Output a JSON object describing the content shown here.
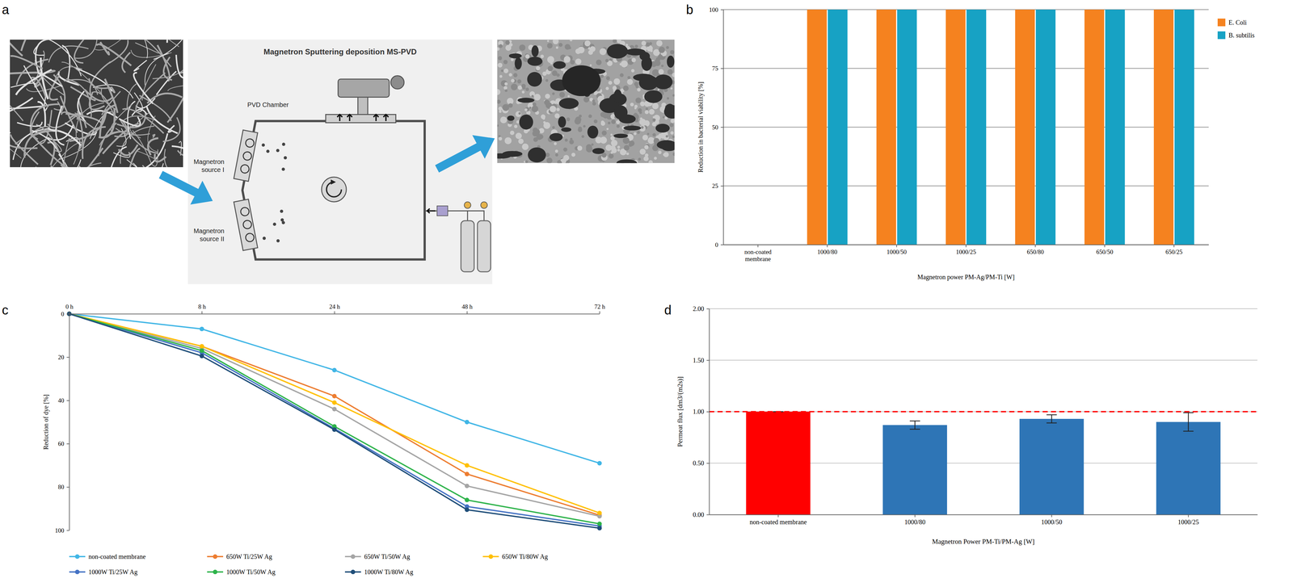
{
  "chart_data": [
    {
      "type": "diagram",
      "panel": "a",
      "title": "Magnetron Sputtering deposition MS-PVD",
      "labels": [
        "PVD Chamber",
        "Magnetron source I",
        "Magnetron source II"
      ]
    },
    {
      "type": "bar",
      "panel": "b",
      "categories": [
        "non-coated membrane",
        "1000/80",
        "1000/50",
        "1000/25",
        "650/80",
        "650/50",
        "650/25"
      ],
      "series": [
        {
          "name": "E. Coli",
          "color": "#f5821f",
          "values": [
            0,
            100,
            100,
            100,
            100,
            100,
            100
          ]
        },
        {
          "name": "B. subtilis",
          "color": "#17a2c4",
          "values": [
            0,
            100,
            100,
            100,
            100,
            100,
            100
          ]
        }
      ],
      "x_label": "Magnetron power PM-Ag/PM-Ti [W]",
      "y_label": "Reduction in bacterial viability [%]",
      "ylim": [
        0,
        100
      ],
      "yticks": [
        0,
        25,
        50,
        75,
        100
      ],
      "grid": true,
      "legend": "right"
    },
    {
      "type": "line",
      "panel": "c",
      "categories": [
        "0 h",
        "8 h",
        "24 h",
        "48 h",
        "72 h"
      ],
      "series": [
        {
          "name": "non-coated membrane",
          "color": "#41b6e6",
          "values": [
            0,
            7,
            26,
            50,
            69
          ]
        },
        {
          "name": "650W Ti/25W Ag",
          "color": "#ed7d31",
          "values": [
            0,
            15,
            38,
            74,
            93
          ]
        },
        {
          "name": "650W Ti/50W Ag",
          "color": "#a5a5a5",
          "values": [
            0,
            16,
            44,
            79.5,
            93.5
          ]
        },
        {
          "name": "650W Ti/80W Ag",
          "color": "#ffc000",
          "values": [
            0,
            15,
            41,
            70,
            92
          ]
        },
        {
          "name": "1000W Ti/25W Ag",
          "color": "#4472c4",
          "values": [
            0,
            18,
            53,
            89,
            98
          ]
        },
        {
          "name": "1000W Ti/50W Ag",
          "color": "#2db34a",
          "values": [
            0,
            17,
            52,
            86,
            97
          ]
        },
        {
          "name": "1000W Ti/80W Ag",
          "color": "#1f4e79",
          "values": [
            0,
            19.5,
            53.5,
            90.5,
            99
          ]
        }
      ],
      "y_label": "Reduction of dye [%]",
      "ylim": [
        100,
        0
      ],
      "yticks": [
        0,
        20,
        40,
        60,
        80,
        100
      ],
      "grid": false,
      "legend": "bottom",
      "marker": "circle"
    },
    {
      "type": "bar",
      "panel": "d",
      "categories": [
        "non-coated membrane",
        "1000/80",
        "1000/50",
        "1000/25"
      ],
      "values": [
        1.0,
        0.87,
        0.93,
        0.9
      ],
      "errors": [
        0,
        0.04,
        0.04,
        0.09
      ],
      "colors": [
        "#ff0000",
        "#2e75b6",
        "#2e75b6",
        "#2e75b6"
      ],
      "hline": 1.0,
      "x_label": "Magnetron Power PM-Ti/PM-Ag [W]",
      "y_label": "Permeat flux [dm3/(m2s)]",
      "ylim": [
        0,
        2
      ],
      "yticks": [
        {
          "value": 0,
          "label": "0.00"
        },
        {
          "value": 0.5,
          "label": "0.50"
        },
        {
          "value": 1,
          "label": "1.00"
        },
        {
          "value": 1.5,
          "label": "1.50"
        },
        {
          "value": 2,
          "label": "2.00"
        }
      ],
      "grid": true
    }
  ]
}
